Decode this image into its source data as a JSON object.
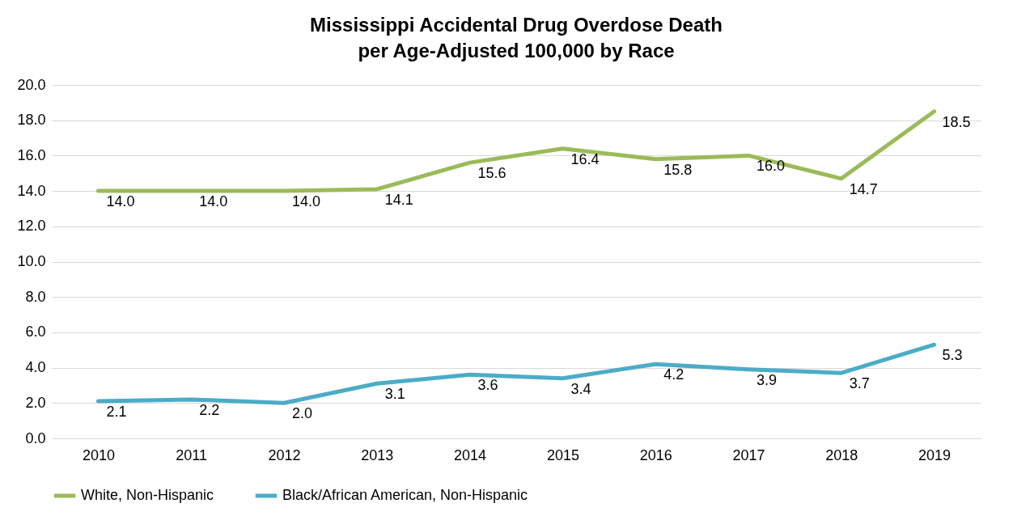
{
  "chart_data": {
    "type": "line",
    "title": "Mississippi Accidental Drug Overdose Death per Age-Adjusted 100,000 by Race",
    "categories": [
      "2010",
      "2011",
      "2012",
      "2013",
      "2014",
      "2015",
      "2016",
      "2017",
      "2018",
      "2019"
    ],
    "series": [
      {
        "name": "White, Non-Hispanic",
        "color": "#9bbb59",
        "values": [
          14.0,
          14.0,
          14.0,
          14.1,
          15.6,
          16.4,
          15.8,
          16.0,
          14.7,
          18.5
        ],
        "value_labels": [
          "14.0",
          "14.0",
          "14.0",
          "14.1",
          "15.6",
          "16.4",
          "15.8",
          "16.0",
          "14.7",
          "18.5"
        ]
      },
      {
        "name": "Black/African American, Non-Hispanic",
        "color": "#4bacc6",
        "values": [
          2.1,
          2.2,
          2.0,
          3.1,
          3.6,
          3.4,
          4.2,
          3.9,
          3.7,
          5.3
        ],
        "value_labels": [
          "2.1",
          "2.2",
          "2.0",
          "3.1",
          "3.6",
          "3.4",
          "4.2",
          "3.9",
          "3.7",
          "5.3"
        ]
      }
    ],
    "ylim": [
      0,
      20
    ],
    "yticks": [
      {
        "value": 0,
        "label": "0.0"
      },
      {
        "value": 2,
        "label": "2.0"
      },
      {
        "value": 4,
        "label": "4.0"
      },
      {
        "value": 6,
        "label": "6.0"
      },
      {
        "value": 8,
        "label": "8.0"
      },
      {
        "value": 10,
        "label": "10.0"
      },
      {
        "value": 12,
        "label": "12.0"
      },
      {
        "value": 14,
        "label": "14.0"
      },
      {
        "value": 16,
        "label": "16.0"
      },
      {
        "value": 18,
        "label": "18.0"
      },
      {
        "value": 20,
        "label": "20.0"
      }
    ],
    "grid": "y",
    "legend": "bottom",
    "marker": "none",
    "line_style": "solid"
  }
}
